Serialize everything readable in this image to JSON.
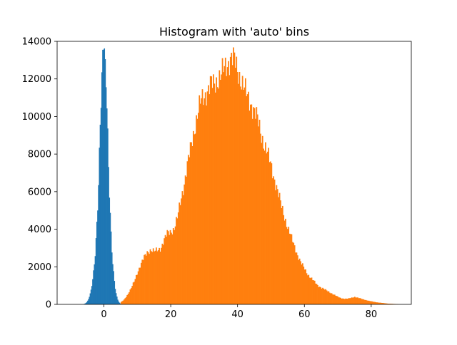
{
  "chart_data": {
    "type": "bar",
    "title": "Histogram with 'auto' bins",
    "xlabel": "",
    "ylabel": "",
    "xlim": [
      -14,
      92
    ],
    "ylim": [
      0,
      14000
    ],
    "grid": false,
    "xticks": [
      0,
      20,
      40,
      60,
      80
    ],
    "yticks": [
      0,
      2000,
      4000,
      6000,
      8000,
      10000,
      12000,
      14000
    ],
    "series": [
      {
        "color": "#1f77b4",
        "bin_width": 0.25,
        "x": [
          -6.0,
          -5.5,
          -5.0,
          -4.5,
          -4.0,
          -3.5,
          -3.0,
          -2.5,
          -2.0,
          -1.5,
          -1.0,
          -0.5,
          0.0,
          0.5,
          1.0,
          1.5,
          2.0,
          2.5,
          3.0,
          3.5,
          4.0,
          4.5,
          5.0
        ],
        "values": [
          20,
          60,
          150,
          330,
          650,
          1150,
          1900,
          3000,
          4600,
          7200,
          10200,
          13000,
          14000,
          12500,
          9800,
          6600,
          4100,
          2500,
          1400,
          700,
          300,
          110,
          30
        ]
      },
      {
        "color": "#ff7f0e",
        "bin_width": 0.3,
        "x": [
          5,
          6,
          7,
          8,
          9,
          10,
          11,
          12,
          13,
          14,
          15,
          16,
          17,
          18,
          19,
          20,
          21,
          22,
          23,
          24,
          25,
          26,
          27,
          28,
          29,
          30,
          31,
          32,
          33,
          34,
          35,
          36,
          37,
          38,
          39,
          40,
          41,
          42,
          43,
          44,
          45,
          46,
          47,
          48,
          49,
          50,
          51,
          52,
          53,
          54,
          55,
          56,
          57,
          58,
          59,
          60,
          61,
          62,
          63,
          64,
          65,
          66,
          67,
          68,
          69,
          70,
          71,
          72,
          73,
          74,
          75,
          76,
          77,
          78,
          79,
          80,
          81,
          82,
          83,
          84,
          85,
          86,
          87,
          88
        ],
        "values": [
          100,
          250,
          500,
          800,
          1200,
          1700,
          2100,
          2500,
          2800,
          2900,
          2800,
          2900,
          3000,
          3400,
          3800,
          3900,
          4000,
          4600,
          5600,
          6400,
          7400,
          8400,
          9300,
          10100,
          10800,
          11100,
          11400,
          11700,
          11700,
          12000,
          12200,
          12500,
          12800,
          13200,
          13000,
          12400,
          12000,
          11500,
          11000,
          10700,
          10300,
          9800,
          9100,
          8500,
          8000,
          7400,
          6700,
          6000,
          5300,
          4700,
          4100,
          3600,
          3100,
          2600,
          2200,
          1900,
          1600,
          1400,
          1200,
          1000,
          900,
          800,
          700,
          600,
          500,
          400,
          330,
          300,
          300,
          350,
          400,
          350,
          300,
          250,
          200,
          160,
          130,
          100,
          80,
          60,
          40,
          30,
          20,
          10
        ]
      }
    ]
  }
}
